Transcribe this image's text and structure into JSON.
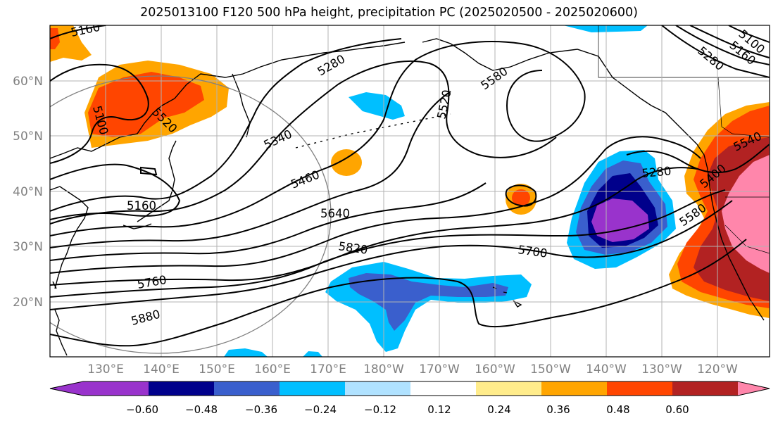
{
  "title": "2025013100 F120 500 hPa height, precipitation PC (2025020500 - 2025020600)",
  "latitude_labels": [
    "60°N",
    "50°N",
    "40°N",
    "30°N",
    "20°N"
  ],
  "longitude_labels": [
    "130°E",
    "140°E",
    "150°E",
    "160°E",
    "170°E",
    "180°W",
    "170°W",
    "160°W",
    "150°W",
    "140°W",
    "130°W",
    "120°W"
  ],
  "height_contour_labels": [
    "5160",
    "5280",
    "5520",
    "5580",
    "5520",
    "5100",
    "5160",
    "5280",
    "5100",
    "5340",
    "5460",
    "5160",
    "5640",
    "5820",
    "5700",
    "5760",
    "5880",
    "5280",
    "5400",
    "5540",
    "5580"
  ],
  "colorbar": {
    "tick_labels": [
      "−0.60",
      "−0.48",
      "−0.36",
      "−0.24",
      "−0.12",
      "0.12",
      "0.24",
      "0.36",
      "0.48",
      "0.60"
    ],
    "colors": [
      "#9933cc",
      "#00008b",
      "#3a5fcd",
      "#00bfff",
      "#b0e2ff",
      "#ffffff",
      "#ffec8b",
      "#ffa500",
      "#ff4500",
      "#b22222",
      "#ff86ab",
      "#ff86ab"
    ]
  }
}
